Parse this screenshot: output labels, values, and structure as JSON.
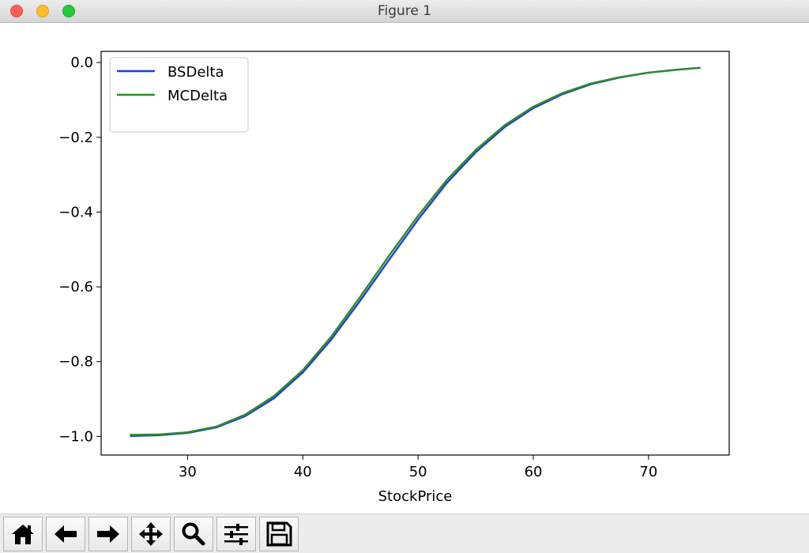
{
  "window": {
    "title": "Figure 1"
  },
  "toolbar": {
    "buttons": [
      {
        "name": "home-icon"
      },
      {
        "name": "back-icon"
      },
      {
        "name": "forward-icon"
      },
      {
        "name": "pan-icon"
      },
      {
        "name": "zoom-icon"
      },
      {
        "name": "subplots-icon"
      },
      {
        "name": "save-icon"
      }
    ]
  },
  "chart_data": {
    "type": "line",
    "title": "",
    "xlabel": "StockPrice",
    "ylabel": "",
    "xlim": [
      22.5,
      77
    ],
    "ylim": [
      -1.05,
      0.03
    ],
    "xticks": [
      30,
      40,
      50,
      60,
      70
    ],
    "yticks": [
      0.0,
      -0.2,
      -0.4,
      -0.6,
      -0.8,
      -1.0
    ],
    "xtick_labels": [
      "30",
      "40",
      "50",
      "60",
      "70"
    ],
    "ytick_labels": [
      "0.0",
      "−0.2",
      "−0.4",
      "−0.6",
      "−0.8",
      "−1.0"
    ],
    "grid": false,
    "legend_position": "top-left",
    "x": [
      25,
      27.5,
      30,
      32.5,
      35,
      37.5,
      40,
      42.5,
      45,
      47.5,
      50,
      52.5,
      55,
      57.5,
      60,
      62.5,
      65,
      67.5,
      70,
      72.5,
      74.5
    ],
    "series": [
      {
        "name": "BSDelta",
        "color": "#1f3fd6",
        "values": [
          -0.999,
          -0.997,
          -0.991,
          -0.976,
          -0.946,
          -0.898,
          -0.829,
          -0.74,
          -0.636,
          -0.527,
          -0.42,
          -0.322,
          -0.24,
          -0.173,
          -0.122,
          -0.085,
          -0.058,
          -0.04,
          -0.027,
          -0.019,
          -0.014
        ]
      },
      {
        "name": "MCDelta",
        "color": "#2e8b2e",
        "values": [
          -0.996,
          -0.995,
          -0.989,
          -0.974,
          -0.942,
          -0.892,
          -0.823,
          -0.732,
          -0.626,
          -0.516,
          -0.41,
          -0.314,
          -0.234,
          -0.168,
          -0.118,
          -0.082,
          -0.056,
          -0.039,
          -0.027,
          -0.019,
          -0.014
        ]
      }
    ]
  }
}
